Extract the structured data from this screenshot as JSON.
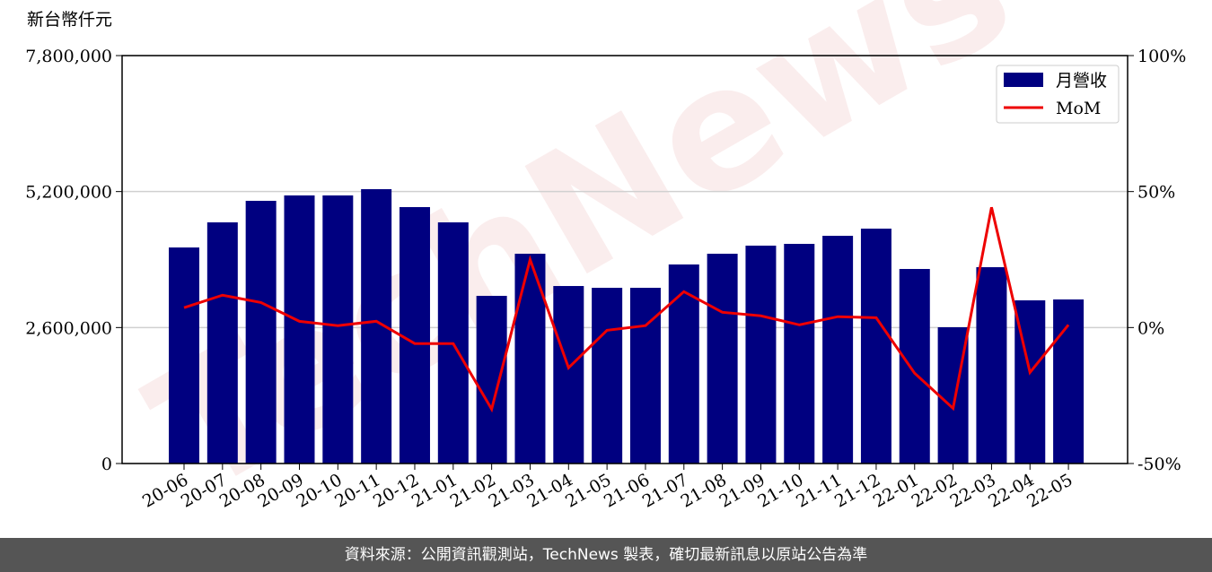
{
  "chart_data": {
    "type": "bar-line",
    "y_axis_label": "新台幣仟元",
    "watermark": "TechNews",
    "categories": [
      "20-06",
      "20-07",
      "20-08",
      "20-09",
      "20-10",
      "20-11",
      "20-12",
      "21-01",
      "21-02",
      "21-03",
      "21-04",
      "21-05",
      "21-06",
      "21-07",
      "21-08",
      "21-09",
      "21-10",
      "21-11",
      "21-12",
      "22-01",
      "22-02",
      "22-03",
      "22-04",
      "22-05"
    ],
    "series": [
      {
        "name": "月營收",
        "type": "bar",
        "color": "#000080",
        "values": [
          4131000,
          4611000,
          5023000,
          5126000,
          5126000,
          5246000,
          4903000,
          4611000,
          3206000,
          4011000,
          3394000,
          3360000,
          3360000,
          3806000,
          4011000,
          4166000,
          4200000,
          4354000,
          4491000,
          3720000,
          2606000,
          3754000,
          3120000,
          3137000
        ]
      },
      {
        "name": "MoM",
        "type": "line",
        "axis": "y2",
        "color": "#ee0000",
        "values": [
          7.3,
          11.9,
          9.2,
          2.3,
          0.7,
          2.3,
          -5.9,
          -5.9,
          -30,
          25,
          -14.8,
          -1,
          0.7,
          13.2,
          5.6,
          4.3,
          1,
          4,
          3.6,
          -16.8,
          -29.7,
          44.2,
          -16.5,
          1
        ]
      }
    ],
    "ylim": [
      0,
      7800000
    ],
    "yticks": [
      0,
      {
        "value": 2600000,
        "label": "2,600,000"
      },
      {
        "value": 5200000,
        "label": "5,200,000"
      },
      {
        "value": 7800000,
        "label": "7,800,000"
      }
    ],
    "y2lim": [
      -50,
      100
    ],
    "y2ticks": [
      {
        "value": -50,
        "label": "-50%"
      },
      {
        "value": 0,
        "label": "0%"
      },
      {
        "value": 50,
        "label": "50%"
      },
      {
        "value": 100,
        "label": "100%"
      }
    ],
    "grid": true,
    "legend": "upper right",
    "footer": "資料來源：公開資訊觀測站，TechNews 製表，確切最新訊息以原站公告為準"
  }
}
